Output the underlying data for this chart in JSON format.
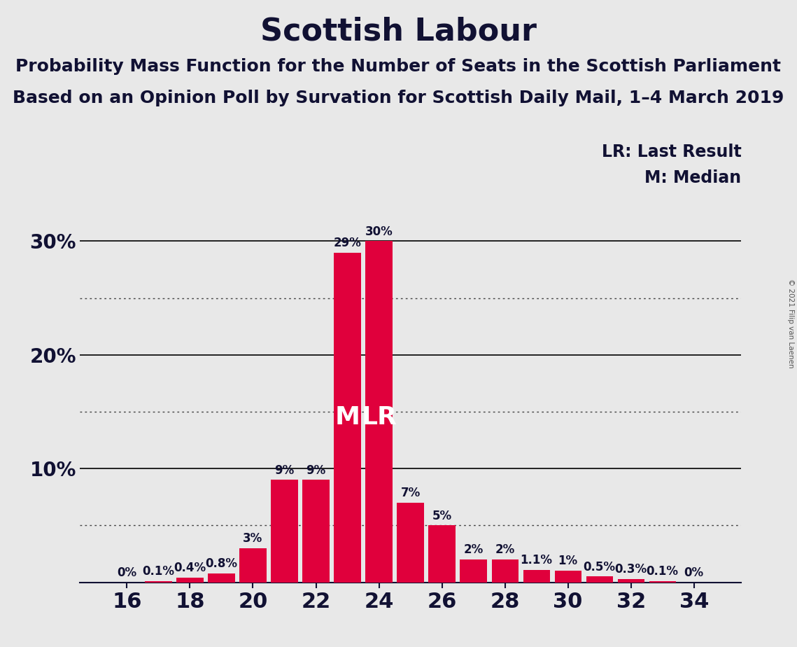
{
  "title": "Scottish Labour",
  "subtitle1": "Probability Mass Function for the Number of Seats in the Scottish Parliament",
  "subtitle2": "Based on an Opinion Poll by Survation for Scottish Daily Mail, 1–4 March 2019",
  "copyright": "© 2021 Filip van Laenen",
  "seats": [
    16,
    17,
    18,
    19,
    20,
    21,
    22,
    23,
    24,
    25,
    26,
    27,
    28,
    29,
    30,
    31,
    32,
    33,
    34
  ],
  "probabilities": [
    0.0,
    0.1,
    0.4,
    0.8,
    3.0,
    9.0,
    9.0,
    29.0,
    30.0,
    7.0,
    5.0,
    2.0,
    2.0,
    1.1,
    1.0,
    0.5,
    0.3,
    0.1,
    0.0
  ],
  "bar_color": "#E0003C",
  "background_color": "#E8E8E8",
  "median_seat": 23,
  "last_result_seat": 24,
  "ylim": [
    0,
    33
  ],
  "yticks_labeled": [
    10,
    20,
    30
  ],
  "yticks_dotted": [
    5,
    15,
    25
  ],
  "solid_gridlines": [
    10,
    20,
    30
  ],
  "dotted_gridlines": [
    5,
    15,
    25
  ],
  "legend_lr": "LR: Last Result",
  "legend_m": "M: Median",
  "label_fontsize": 12,
  "title_fontsize": 32,
  "subtitle_fontsize": 18,
  "yticklabel_fontsize": 20,
  "xticklabel_fontsize": 22,
  "legend_fontsize": 17,
  "bar_label_color": "#111133",
  "axis_color": "#111133",
  "ml_label_fontsize": 26
}
